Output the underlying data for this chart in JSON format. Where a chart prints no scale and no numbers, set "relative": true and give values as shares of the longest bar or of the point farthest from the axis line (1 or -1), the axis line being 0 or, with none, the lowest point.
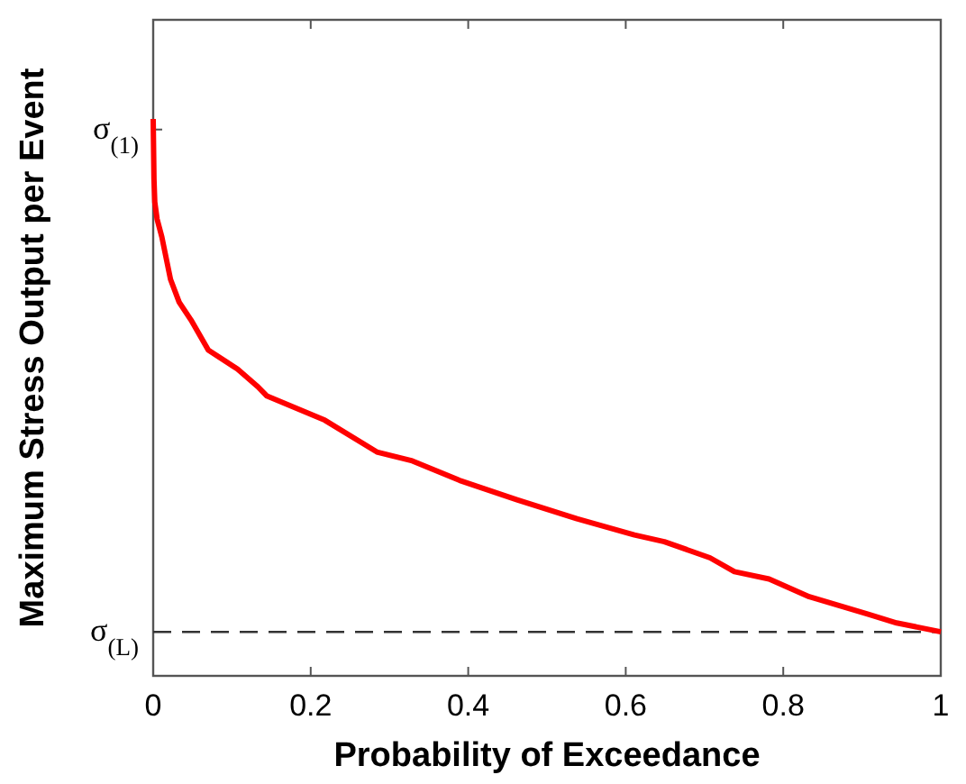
{
  "chart_data": {
    "type": "line",
    "relative": true,
    "xlabel": "Probability of Exceedance",
    "ylabel": "Maximum Stress Output per Event",
    "xlim": [
      0,
      1
    ],
    "xticks": [
      0,
      0.2,
      0.4,
      0.6,
      0.8,
      1
    ],
    "x": [
      0,
      0.001,
      0.002,
      0.005,
      0.011,
      0.022,
      0.033,
      0.048,
      0.07,
      0.107,
      0.133,
      0.144,
      0.218,
      0.284,
      0.329,
      0.389,
      0.462,
      0.538,
      0.611,
      0.649,
      0.707,
      0.738,
      0.782,
      0.833,
      0.907,
      0.944,
      1
    ],
    "series": [
      {
        "color": "#ff0000",
        "values": [
          1,
          0.892,
          0.851,
          0.82,
          0.788,
          0.712,
          0.671,
          0.639,
          0.585,
          0.551,
          0.519,
          0.503,
          0.459,
          0.402,
          0.386,
          0.351,
          0.316,
          0.282,
          0.253,
          0.241,
          0.212,
          0.187,
          0.174,
          0.142,
          0.111,
          0.095,
          0.079
        ]
      }
    ],
    "ref_lines": [
      {
        "axis": "y",
        "value": 0.079,
        "label": "σ$_{(L)}$",
        "color": "#333333",
        "line_style": "dashed"
      }
    ],
    "annotations": [
      {
        "text": "σ$_{(1)}$",
        "x": 0,
        "y": 0.981
      }
    ],
    "grid": false,
    "marker": "none",
    "line_style": "solid"
  }
}
